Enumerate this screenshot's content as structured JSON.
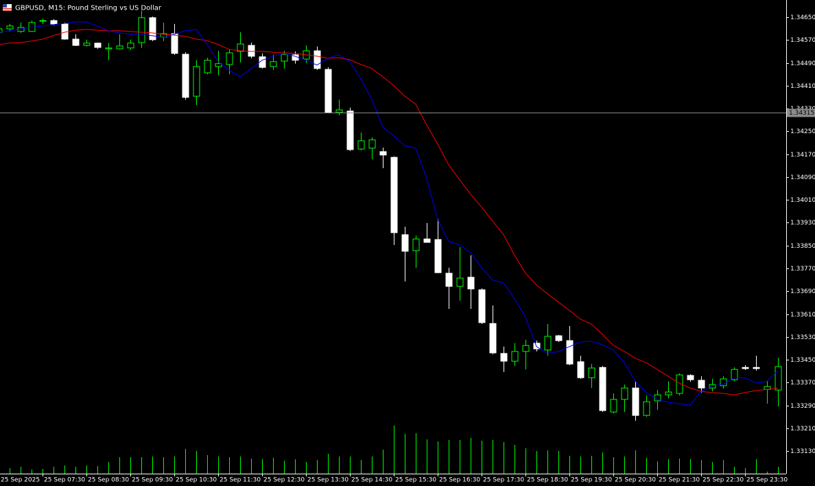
{
  "chart_data": {
    "type": "candlestick",
    "title": "GBPUSD, M15:  Pound Sterling vs US Dollar",
    "categories": [
      "25 Sep 2025",
      null,
      null,
      null,
      "25 Sep 07:30",
      null,
      null,
      null,
      "25 Sep 08:30",
      null,
      null,
      null,
      "25 Sep 09:30",
      null,
      null,
      null,
      "25 Sep 10:30",
      null,
      null,
      null,
      "25 Sep 11:30",
      null,
      null,
      null,
      "25 Sep 12:30",
      null,
      null,
      null,
      "25 Sep 13:30",
      null,
      null,
      null,
      "25 Sep 14:30",
      null,
      null,
      null,
      "25 Sep 15:30",
      null,
      null,
      null,
      "25 Sep 16:30",
      null,
      null,
      null,
      "25 Sep 17:30",
      null,
      null,
      null,
      "25 Sep 18:30",
      null,
      null,
      null,
      "25 Sep 19:30",
      null,
      null,
      null,
      "25 Sep 20:30",
      null,
      null,
      null,
      "25 Sep 21:30",
      null,
      null,
      null,
      "25 Sep 22:30",
      null,
      null,
      null,
      "25 Sep 23:30",
      null,
      null,
      null
    ],
    "open": [
      1.34597,
      1.34609,
      1.346,
      1.346,
      1.34636,
      1.34638,
      1.34626,
      1.34573,
      1.34551,
      1.34559,
      1.34539,
      1.34539,
      1.34542,
      1.34561,
      1.34648,
      1.3458,
      1.34592,
      1.3452,
      1.34373,
      1.34455,
      1.34477,
      1.34484,
      1.3453,
      1.34551,
      1.34511,
      1.34477,
      1.34496,
      1.34518,
      1.34503,
      1.34532,
      1.34467,
      1.34316,
      1.34321,
      1.34188,
      1.34191,
      1.34179,
      1.34159,
      1.33888,
      1.33832,
      1.33873,
      1.33871,
      1.33753,
      1.33707,
      1.33739,
      1.33695,
      1.33577,
      1.33472,
      1.33445,
      1.33479,
      1.33508,
      1.33484,
      1.33534,
      1.33517,
      1.33443,
      1.33387,
      1.33423,
      1.33267,
      1.33311,
      1.33351,
      1.33255,
      1.33306,
      1.33327,
      1.33332,
      1.33395,
      1.33378,
      1.33351,
      1.33359,
      1.3338,
      1.33423,
      1.33423,
      1.33346,
      1.33344
    ],
    "high": [
      1.34619,
      1.34626,
      1.34631,
      1.34638,
      1.34645,
      1.34643,
      1.34631,
      1.3459,
      1.34571,
      1.34561,
      1.34559,
      1.3459,
      1.34571,
      1.34672,
      1.34652,
      1.34631,
      1.34626,
      1.34527,
      1.34499,
      1.34508,
      1.34532,
      1.34537,
      1.34597,
      1.34561,
      1.34523,
      1.34518,
      1.34532,
      1.3453,
      1.34551,
      1.34547,
      1.34474,
      1.34361,
      1.34333,
      1.34246,
      1.34229,
      1.34193,
      1.34162,
      1.33916,
      1.33885,
      1.33929,
      1.33943,
      1.33772,
      1.33844,
      1.33816,
      1.337,
      1.3364,
      1.33496,
      1.33508,
      1.3352,
      1.33517,
      1.33575,
      1.33537,
      1.33568,
      1.33464,
      1.33435,
      1.33428,
      1.33332,
      1.33363,
      1.33375,
      1.33325,
      1.33344,
      1.33375,
      1.33402,
      1.33399,
      1.33392,
      1.33383,
      1.33392,
      1.33423,
      1.33431,
      1.33464,
      1.33375,
      1.33457
    ],
    "low": [
      1.34595,
      1.346,
      1.34595,
      1.346,
      1.34626,
      1.34621,
      1.34571,
      1.34549,
      1.34547,
      1.34539,
      1.34499,
      1.34537,
      1.34535,
      1.34542,
      1.34566,
      1.34566,
      1.34518,
      1.34361,
      1.34342,
      1.3445,
      1.34446,
      1.3445,
      1.34491,
      1.34506,
      1.3447,
      1.34465,
      1.3447,
      1.34487,
      1.34489,
      1.34465,
      1.34313,
      1.34306,
      1.34181,
      1.34183,
      1.34152,
      1.34121,
      1.33852,
      1.33724,
      1.33772,
      1.33861,
      1.33753,
      1.33628,
      1.33657,
      1.33628,
      1.33575,
      1.33469,
      1.33407,
      1.33428,
      1.33416,
      1.33479,
      1.33464,
      1.33512,
      1.33431,
      1.33383,
      1.33351,
      1.33267,
      1.33262,
      1.33267,
      1.33236,
      1.3325,
      1.33274,
      1.33315,
      1.33325,
      1.33373,
      1.33335,
      1.33339,
      1.33349,
      1.33375,
      1.33414,
      1.33412,
      1.33296,
      1.33286
    ],
    "close": [
      1.34609,
      1.34619,
      1.34614,
      1.34631,
      1.34638,
      1.34626,
      1.34573,
      1.34551,
      1.34559,
      1.34544,
      1.34542,
      1.34549,
      1.34559,
      1.34648,
      1.34571,
      1.34592,
      1.34523,
      1.34369,
      1.34477,
      1.34499,
      1.34487,
      1.34525,
      1.34556,
      1.34513,
      1.34474,
      1.34494,
      1.3452,
      1.34499,
      1.34532,
      1.3447,
      1.34316,
      1.34325,
      1.34186,
      1.34217,
      1.3422,
      1.34167,
      1.33895,
      1.3383,
      1.33873,
      1.33861,
      1.33755,
      1.33707,
      1.33736,
      1.33698,
      1.3358,
      1.33474,
      1.33445,
      1.33479,
      1.335,
      1.33488,
      1.33532,
      1.33517,
      1.33435,
      1.33387,
      1.33421,
      1.33272,
      1.33311,
      1.33351,
      1.33255,
      1.33303,
      1.33327,
      1.33337,
      1.33397,
      1.3338,
      1.33351,
      1.33363,
      1.33383,
      1.33416,
      1.33419,
      1.33419,
      1.33356,
      1.33426
    ],
    "bull_color": "#00ff00",
    "bear_color": "#ffffff",
    "moving_averages": [
      {
        "color": "#ff0000",
        "values": [
          1.34554,
          1.34559,
          1.34561,
          1.34566,
          1.34573,
          1.34585,
          1.34597,
          1.34604,
          1.34607,
          1.34604,
          1.34602,
          1.34602,
          1.346,
          1.34597,
          1.34595,
          1.3459,
          1.34587,
          1.34583,
          1.34573,
          1.34568,
          1.34554,
          1.34537,
          1.34532,
          1.3453,
          1.3453,
          1.34527,
          1.34525,
          1.34523,
          1.34518,
          1.34513,
          1.34506,
          1.34508,
          1.34501,
          1.34484,
          1.3447,
          1.34441,
          1.3441,
          1.34373,
          1.34345,
          1.34272,
          1.34205,
          1.34133,
          1.3408,
          1.3403,
          1.33984,
          1.33936,
          1.33888,
          1.33816,
          1.33753,
          1.33712,
          1.33681,
          1.33652,
          1.33623,
          1.33592,
          1.33575,
          1.33539,
          1.335,
          1.33479,
          1.33455,
          1.3344,
          1.33416,
          1.33392,
          1.33368,
          1.33351,
          1.33339,
          1.33335,
          1.33332,
          1.33327,
          1.33335,
          1.33342,
          1.33346,
          1.33351
        ]
      },
      {
        "color": "#0000ff",
        "values": [
          1.34597,
          1.34602,
          1.34609,
          1.34614,
          1.34619,
          1.34624,
          1.34628,
          1.34633,
          1.34633,
          1.34619,
          1.34602,
          1.34595,
          1.3459,
          1.3459,
          1.34585,
          1.34578,
          1.3459,
          1.34602,
          1.34607,
          1.34554,
          1.34494,
          1.34465,
          1.34441,
          1.3447,
          1.34499,
          1.34513,
          1.34523,
          1.34513,
          1.34499,
          1.34482,
          1.34506,
          1.34518,
          1.34494,
          1.34434,
          1.34361,
          1.34265,
          1.34234,
          1.342,
          1.34191,
          1.34085,
          1.33941,
          1.33864,
          1.33852,
          1.33825,
          1.33772,
          1.33729,
          1.33719,
          1.33664,
          1.33599,
          1.33496,
          1.33472,
          1.33479,
          1.33496,
          1.33512,
          1.33515,
          1.33503,
          1.33484,
          1.3344,
          1.33375,
          1.33335,
          1.33311,
          1.33301,
          1.33296,
          1.33291,
          1.33339,
          1.33359,
          1.33363,
          1.33387,
          1.33387,
          1.33368,
          1.33375,
          1.33412
        ]
      }
    ],
    "volume": {
      "color": "#00ff00",
      "values": [
        4,
        8,
        10,
        6,
        7,
        10,
        12,
        10,
        12,
        11,
        17,
        24,
        24,
        24,
        25,
        24,
        25,
        36,
        33,
        27,
        25,
        24,
        25,
        22,
        21,
        23,
        19,
        21,
        17,
        20,
        29,
        25,
        25,
        20,
        25,
        35,
        70,
        58,
        59,
        50,
        47,
        49,
        49,
        52,
        48,
        49,
        46,
        42,
        37,
        33,
        34,
        33,
        26,
        25,
        26,
        31,
        24,
        25,
        34,
        23,
        18,
        21,
        22,
        21,
        20,
        17,
        20,
        10,
        8,
        21,
        3,
        10
      ]
    },
    "price_line": {
      "value": 1.34315,
      "label": "1.34315",
      "color": "#8c8c8c"
    },
    "ylim": [
      1.33051,
      1.3471
    ],
    "yticks": [
      {
        "value": 1.3465,
        "label": "1.34650"
      },
      {
        "value": 1.3457,
        "label": "1.34570"
      },
      {
        "value": 1.3449,
        "label": "1.34490"
      },
      {
        "value": 1.3441,
        "label": "1.34410"
      },
      {
        "value": 1.3433,
        "label": "1.34330"
      },
      {
        "value": 1.3425,
        "label": "1.34250"
      },
      {
        "value": 1.3417,
        "label": "1.34170"
      },
      {
        "value": 1.3409,
        "label": "1.34090"
      },
      {
        "value": 1.3401,
        "label": "1.34010"
      },
      {
        "value": 1.3393,
        "label": "1.33930"
      },
      {
        "value": 1.3385,
        "label": "1.33850"
      },
      {
        "value": 1.3377,
        "label": "1.33770"
      },
      {
        "value": 1.3369,
        "label": "1.33690"
      },
      {
        "value": 1.3361,
        "label": "1.33610"
      },
      {
        "value": 1.3353,
        "label": "1.33530"
      },
      {
        "value": 1.3345,
        "label": "1.33450"
      },
      {
        "value": 1.3337,
        "label": "1.33370"
      },
      {
        "value": 1.3329,
        "label": "1.33290"
      },
      {
        "value": 1.3321,
        "label": "1.33210"
      },
      {
        "value": 1.3313,
        "label": "1.33130"
      }
    ],
    "grid": false
  }
}
